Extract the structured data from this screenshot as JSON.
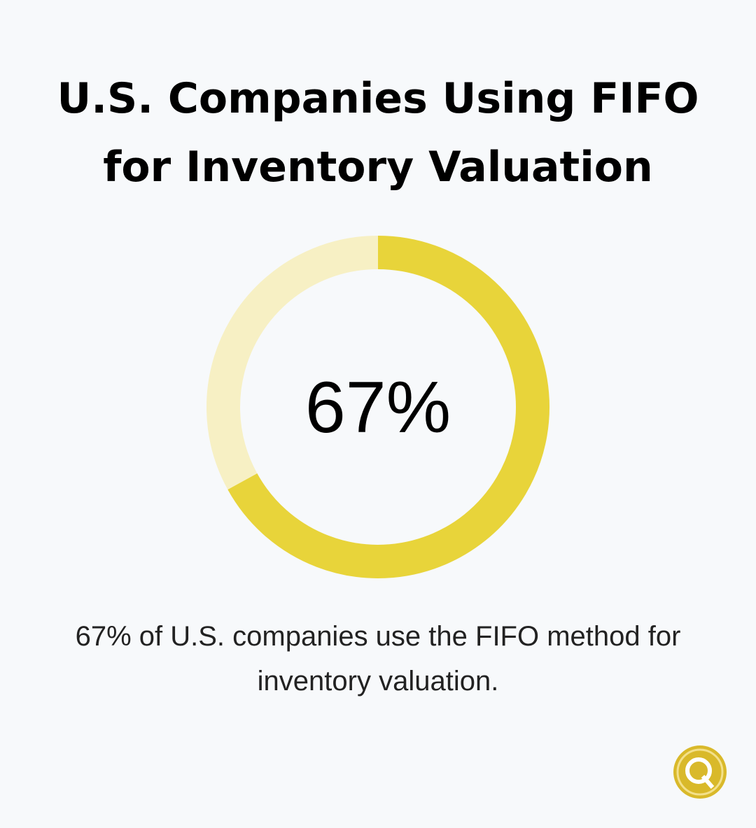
{
  "chart_data": {
    "type": "donut",
    "title": "U.S. Companies Using FIFO for Inventory Valuation",
    "description": "67% of U.S. companies use the FIFO method for inventory valuation.",
    "categories": [
      null,
      null
    ],
    "values": [
      67,
      33
    ],
    "value_labels": [
      "67%",
      null
    ],
    "colors": [
      "#e8d43a",
      "#f7f0c4"
    ]
  }
}
